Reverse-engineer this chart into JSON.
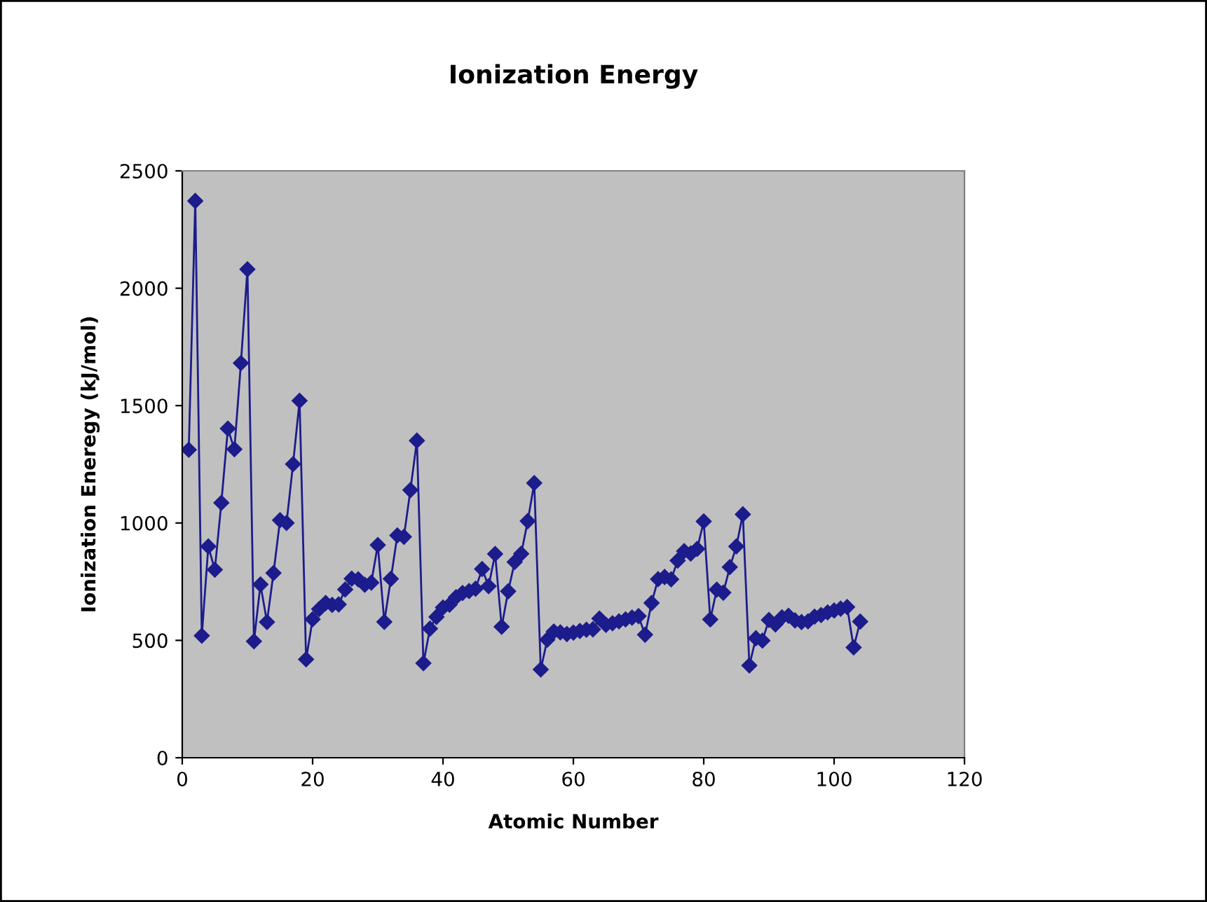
{
  "chart_data": {
    "type": "line",
    "title": "Ionization Energy",
    "xlabel": "Atomic Number",
    "ylabel": "Ionization Eneregy (kJ/mol)",
    "x": [
      1,
      2,
      3,
      4,
      5,
      6,
      7,
      8,
      9,
      10,
      11,
      12,
      13,
      14,
      15,
      16,
      17,
      18,
      19,
      20,
      21,
      22,
      23,
      24,
      25,
      26,
      27,
      28,
      29,
      30,
      31,
      32,
      33,
      34,
      35,
      36,
      37,
      38,
      39,
      40,
      41,
      42,
      43,
      44,
      45,
      46,
      47,
      48,
      49,
      50,
      51,
      52,
      53,
      54,
      55,
      56,
      57,
      58,
      59,
      60,
      61,
      62,
      63,
      64,
      65,
      66,
      67,
      68,
      69,
      70,
      71,
      72,
      73,
      74,
      75,
      76,
      77,
      78,
      79,
      80,
      81,
      82,
      83,
      84,
      85,
      86,
      87,
      88,
      89,
      90,
      91,
      92,
      93,
      94,
      95,
      96,
      97,
      98,
      99,
      100,
      101,
      102,
      103,
      104
    ],
    "series": [
      {
        "color": "#1c1c8c",
        "values": [
          1312,
          2372,
          520,
          900,
          801,
          1086,
          1402,
          1314,
          1681,
          2081,
          496,
          738,
          578,
          787,
          1012,
          1000,
          1251,
          1521,
          419,
          590,
          633,
          659,
          651,
          653,
          717,
          763,
          760,
          737,
          746,
          906,
          579,
          762,
          947,
          941,
          1140,
          1351,
          403,
          550,
          600,
          640,
          652,
          684,
          702,
          710,
          720,
          804,
          731,
          868,
          558,
          709,
          834,
          869,
          1008,
          1170,
          376,
          503,
          538,
          534,
          527,
          533,
          540,
          545,
          547,
          593,
          566,
          573,
          581,
          589,
          597,
          603,
          524,
          659,
          761,
          770,
          760,
          840,
          880,
          870,
          890,
          1007,
          589,
          716,
          703,
          812,
          900,
          1037,
          393,
          509,
          499,
          587,
          568,
          598,
          605,
          585,
          578,
          581,
          601,
          608,
          619,
          627,
          635,
          642,
          470,
          580
        ]
      }
    ],
    "xlim": [
      0,
      120
    ],
    "xticks": [
      0,
      20,
      40,
      60,
      80,
      100,
      120
    ],
    "ylim": [
      0,
      2500
    ],
    "yticks": [
      0,
      500,
      1000,
      1500,
      2000,
      2500
    ],
    "grid": false,
    "legend": false,
    "marker": "diamond",
    "line_style": "solid"
  }
}
